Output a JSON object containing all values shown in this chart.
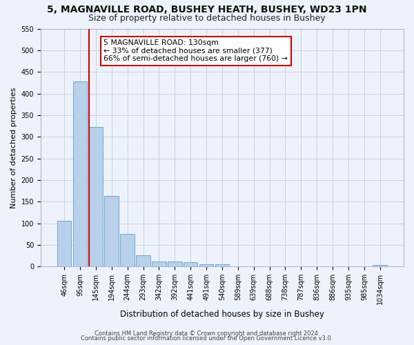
{
  "title": "5, MAGNAVILLE ROAD, BUSHEY HEATH, BUSHEY, WD23 1PN",
  "subtitle": "Size of property relative to detached houses in Bushey",
  "xlabel": "Distribution of detached houses by size in Bushey",
  "ylabel": "Number of detached properties",
  "bin_labels": [
    "46sqm",
    "95sqm",
    "145sqm",
    "194sqm",
    "244sqm",
    "293sqm",
    "342sqm",
    "392sqm",
    "441sqm",
    "491sqm",
    "540sqm",
    "589sqm",
    "639sqm",
    "688sqm",
    "738sqm",
    "787sqm",
    "836sqm",
    "886sqm",
    "935sqm",
    "985sqm",
    "1034sqm"
  ],
  "bar_values": [
    105,
    428,
    322,
    163,
    75,
    26,
    12,
    12,
    10,
    5,
    5,
    0,
    0,
    0,
    0,
    0,
    0,
    0,
    0,
    0,
    4
  ],
  "bar_color": "#b8d0ea",
  "bar_edgecolor": "#6aaad4",
  "vline_color": "#cc0000",
  "ylim": [
    0,
    550
  ],
  "yticks": [
    0,
    50,
    100,
    150,
    200,
    250,
    300,
    350,
    400,
    450,
    500,
    550
  ],
  "annotation_title": "5 MAGNAVILLE ROAD: 130sqm",
  "annotation_line1": "← 33% of detached houses are smaller (377)",
  "annotation_line2": "66% of semi-detached houses are larger (760) →",
  "annotation_box_facecolor": "#ffffff",
  "annotation_box_edgecolor": "#cc0000",
  "footer1": "Contains HM Land Registry data © Crown copyright and database right 2024.",
  "footer2": "Contains public sector information licensed under the Open Government Licence v3.0.",
  "background_color": "#eef2fa",
  "grid_color": "#c8cfe0",
  "title_fontsize": 10,
  "subtitle_fontsize": 9,
  "ylabel_fontsize": 8,
  "xlabel_fontsize": 8.5,
  "tick_fontsize": 7,
  "footer_fontsize": 6,
  "annot_fontsize": 7.8
}
